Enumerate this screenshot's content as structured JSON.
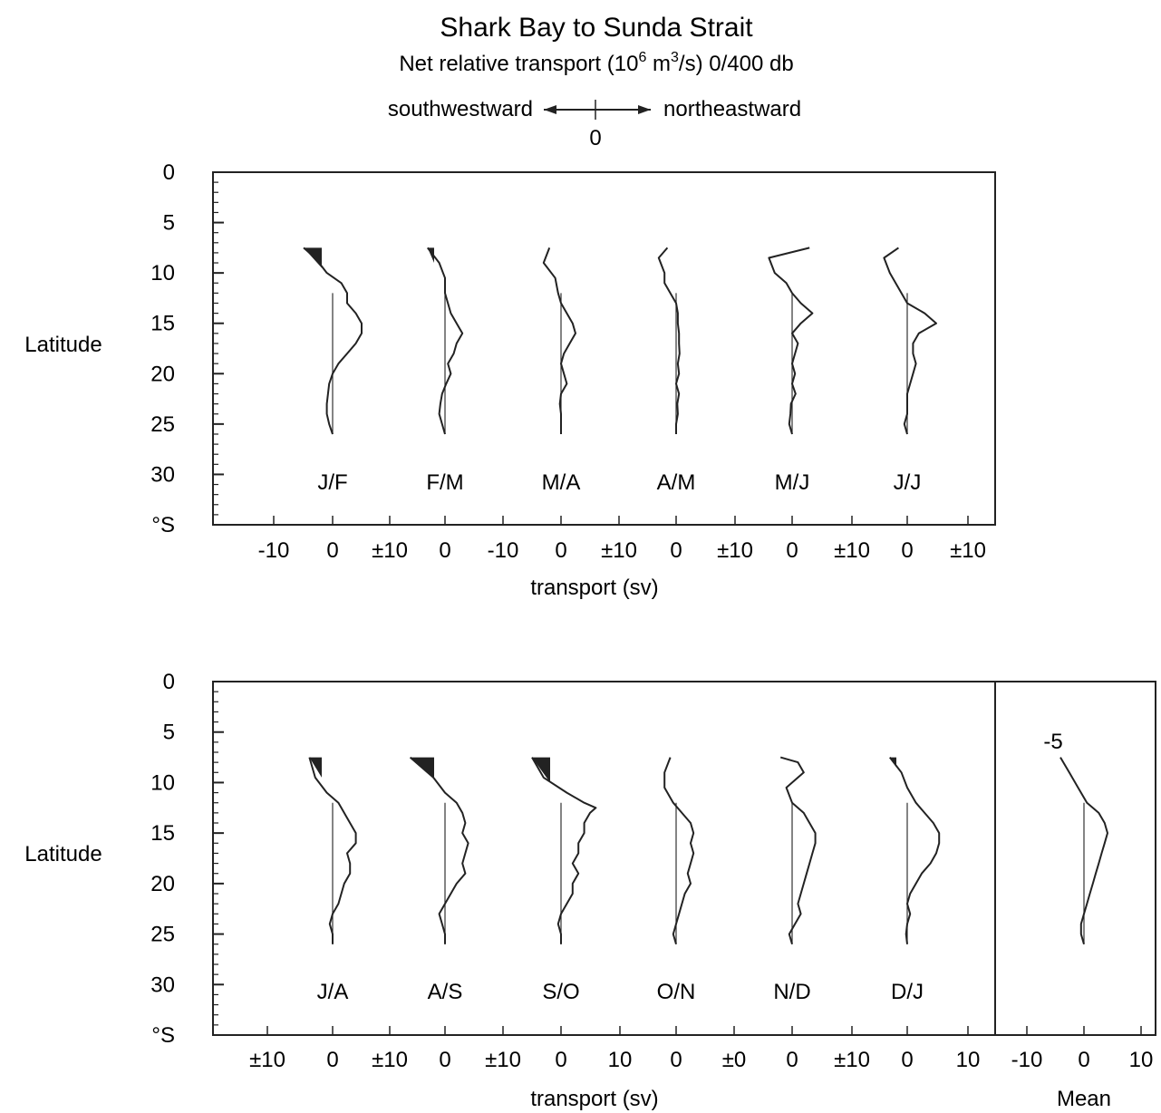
{
  "title": "Shark Bay to Sunda Strait",
  "subtitle_prefix": "Net relative transport (10",
  "subtitle_exp": "6",
  "subtitle_mid": " m",
  "subtitle_exp2": "3",
  "subtitle_suffix": "/s) 0/400 db",
  "direction": {
    "left": "southwestward",
    "right": "northeastward",
    "zero": "0"
  },
  "y_axis_label": "Latitude",
  "x_axis_label": "transport (sv)",
  "mean_label": "Mean",
  "mean_annotation": "-5",
  "chart_data": [
    {
      "type": "line",
      "panel": "top",
      "ylabel": "Latitude",
      "xlabel": "transport (sv)",
      "ylim": [
        0,
        35
      ],
      "y_ticks": [
        "0",
        "5",
        "10",
        "15",
        "20",
        "25",
        "30",
        "°S"
      ],
      "x_tick_labels": [
        "-10",
        "0",
        "±10",
        "0",
        "-10",
        "0",
        "±10",
        "0",
        "±10",
        "0",
        "±10",
        "0",
        "±10"
      ],
      "series": [
        {
          "name": "J/F",
          "lat": [
            7.5,
            8.5,
            10,
            11,
            12,
            13,
            14,
            15,
            16,
            17,
            18,
            19,
            20,
            21,
            22,
            23,
            24,
            25,
            26
          ],
          "transport": [
            -5,
            -3,
            -1,
            1.5,
            2.5,
            2.5,
            4,
            5,
            5,
            4,
            2.5,
            1,
            0,
            -0.6,
            -0.8,
            -1,
            -1,
            -0.6,
            0
          ],
          "filled_lat": [
            7.5,
            9.5
          ]
        },
        {
          "name": "F/M",
          "lat": [
            7.5,
            9,
            10.5,
            12,
            13,
            14,
            15,
            16,
            17,
            18,
            19,
            20,
            21,
            22,
            23,
            24,
            25,
            26
          ],
          "transport": [
            -3,
            -1,
            0,
            0,
            0.5,
            1,
            2,
            3,
            2,
            1.5,
            0.5,
            1,
            0.2,
            -0.5,
            -0.8,
            -1,
            -0.5,
            0
          ],
          "filled_lat": [
            7.5,
            9
          ]
        },
        {
          "name": "M/A",
          "lat": [
            7.5,
            9,
            10.5,
            12,
            13,
            14,
            15,
            16,
            17,
            18,
            19,
            20,
            21,
            22,
            23,
            24,
            25,
            26
          ],
          "transport": [
            -2,
            -3,
            -1,
            -0.5,
            0,
            1,
            2,
            2.5,
            1.5,
            0.5,
            0,
            0.5,
            1,
            0,
            -0.2,
            0,
            0,
            0
          ]
        },
        {
          "name": "A/M",
          "lat": [
            7.5,
            8.5,
            10,
            11,
            12,
            13,
            14,
            15,
            16,
            17,
            18,
            19,
            20,
            21,
            22,
            23,
            24,
            25,
            26
          ],
          "transport": [
            -1.5,
            -3,
            -2,
            -2,
            -1,
            0,
            0.3,
            0.3,
            0.5,
            0.5,
            0.6,
            0.3,
            0.5,
            0,
            0.5,
            0.2,
            0.3,
            0,
            0
          ]
        },
        {
          "name": "M/J",
          "lat": [
            7.5,
            8.5,
            10,
            11,
            12,
            13,
            14,
            15,
            16,
            17,
            18,
            19,
            20,
            21,
            22,
            23,
            24,
            25,
            26
          ],
          "transport": [
            3,
            -4,
            -3,
            -1,
            0,
            1.5,
            3.5,
            1.5,
            0,
            1,
            0.5,
            0,
            0.5,
            0,
            0.6,
            -0.2,
            -0.3,
            -0.5,
            0
          ]
        },
        {
          "name": "J/J",
          "lat": [
            7.5,
            8.5,
            10,
            11,
            12,
            13,
            14,
            15,
            16,
            17,
            18,
            19,
            20,
            21,
            22,
            23,
            24,
            25,
            26
          ],
          "transport": [
            -1.5,
            -4,
            -3,
            -2,
            -1,
            0,
            3,
            5,
            2,
            1,
            1,
            1.5,
            1,
            0.5,
            0,
            0,
            0,
            -0.5,
            0
          ]
        }
      ]
    },
    {
      "type": "line",
      "panel": "bottom",
      "ylabel": "Latitude",
      "xlabel": "transport (sv)",
      "ylim": [
        0,
        35
      ],
      "y_ticks": [
        "0",
        "5",
        "10",
        "15",
        "20",
        "25",
        "30",
        "°S"
      ],
      "x_tick_labels": [
        "±10",
        "0",
        "±10",
        "0",
        "±10",
        "0",
        "10",
        "0",
        "±0",
        "0",
        "±10",
        "0",
        "10"
      ],
      "series": [
        {
          "name": "J/A",
          "lat": [
            7.5,
            9.5,
            11,
            12,
            13,
            14,
            15,
            16,
            17,
            18,
            19,
            20,
            21,
            22,
            23,
            24,
            25,
            26
          ],
          "transport": [
            -4,
            -3,
            -1,
            1,
            2,
            3,
            4,
            4,
            2.5,
            3,
            3,
            2,
            1.5,
            1,
            0,
            -0.5,
            0,
            0
          ],
          "filled_lat": [
            7.5,
            9.5
          ]
        },
        {
          "name": "A/S",
          "lat": [
            7.5,
            9.5,
            11,
            12,
            13,
            14,
            15,
            16,
            17,
            18,
            19,
            20,
            21,
            22,
            23,
            24,
            25,
            26
          ],
          "transport": [
            -6,
            -2,
            0,
            2,
            3,
            3.5,
            3,
            4,
            3.5,
            3,
            3.5,
            2,
            1,
            0,
            -1,
            -0.5,
            0,
            0
          ],
          "filled_lat": [
            7.5,
            9.5
          ]
        },
        {
          "name": "S/O",
          "lat": [
            7.5,
            9.5,
            11,
            12,
            12.5,
            13,
            14,
            15,
            16,
            17,
            18,
            19,
            20,
            21,
            22,
            23,
            24,
            25,
            26
          ],
          "transport": [
            -5,
            -3,
            1,
            4,
            6,
            5,
            4,
            4,
            3,
            3,
            2,
            3,
            2,
            2,
            1,
            0,
            -0.5,
            0,
            0
          ],
          "filled_lat": [
            7.5,
            10
          ]
        },
        {
          "name": "O/N",
          "lat": [
            7.5,
            9,
            10.5,
            12,
            13,
            14,
            15,
            16,
            17,
            18,
            19,
            20,
            21,
            22,
            23,
            24,
            25,
            26
          ],
          "transport": [
            -1,
            -2,
            -2,
            -0.5,
            1,
            2.5,
            3,
            2.5,
            3,
            2.5,
            2,
            2.5,
            1.5,
            1,
            0.5,
            0,
            -0.5,
            0
          ]
        },
        {
          "name": "N/D",
          "lat": [
            7.5,
            8,
            9,
            10.5,
            12,
            13,
            14,
            15,
            16,
            17,
            18,
            19,
            20,
            21,
            22,
            23,
            24,
            25,
            26
          ],
          "transport": [
            -2,
            1,
            2,
            -1,
            0,
            2,
            3,
            4,
            4,
            3.5,
            3,
            2.5,
            2,
            1.5,
            1,
            1.5,
            0.5,
            -0.5,
            0
          ]
        },
        {
          "name": "D/J",
          "lat": [
            7.5,
            9,
            10.5,
            12,
            13,
            14,
            15,
            16,
            17,
            18,
            19,
            20,
            21,
            22,
            23,
            24,
            25,
            26
          ],
          "transport": [
            -3,
            -1,
            0,
            1.5,
            3,
            4.5,
            5.5,
            5.5,
            5,
            4,
            2.5,
            1.5,
            0.5,
            0,
            0.5,
            0,
            -0.2,
            0
          ],
          "filled_lat": [
            7.5,
            8.5
          ]
        }
      ]
    },
    {
      "type": "line",
      "panel": "mean",
      "xlim": [
        -10,
        10
      ],
      "x_tick_labels": [
        "-10",
        "0",
        "10"
      ],
      "series": [
        {
          "name": "Mean",
          "lat": [
            7.5,
            9,
            10.5,
            12,
            13,
            14,
            15,
            16,
            17,
            18,
            19,
            20,
            21,
            22,
            23,
            24,
            25,
            26
          ],
          "transport": [
            -4,
            -2.5,
            -1,
            0.5,
            2.5,
            3.5,
            4,
            3.5,
            3,
            2.5,
            2,
            1.5,
            1,
            0.5,
            0,
            -0.5,
            -0.5,
            0
          ]
        }
      ]
    }
  ]
}
